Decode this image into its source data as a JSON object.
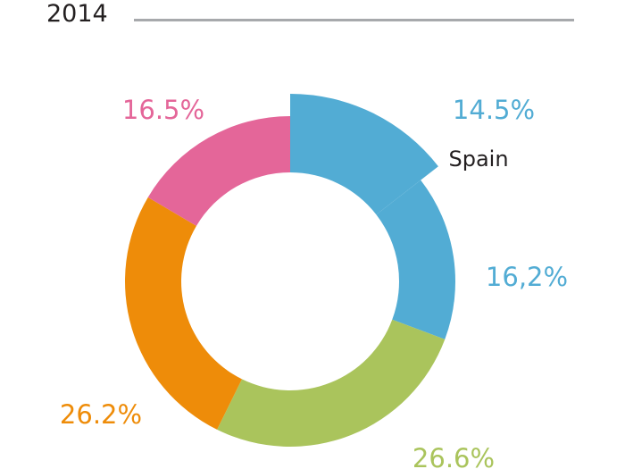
{
  "chart_data": {
    "type": "pie",
    "title": "2014",
    "slices": [
      {
        "label": "14.5%",
        "value": 14.5,
        "name": "Spain",
        "color": "#52acd4",
        "exploded": true
      },
      {
        "label": "16,2%",
        "value": 16.2,
        "name": "",
        "color": "#52acd4",
        "exploded": false
      },
      {
        "label": "26.6%",
        "value": 26.6,
        "name": "",
        "color": "#aac45c",
        "exploded": false
      },
      {
        "label": "26.2%",
        "value": 26.2,
        "name": "",
        "color": "#ee8c09",
        "exploded": false
      },
      {
        "label": "16.5%",
        "value": 16.5,
        "name": "",
        "color": "#e46699",
        "exploded": false
      }
    ],
    "donut": true,
    "colors": {
      "title": "#231f20",
      "rule": "#a7a9ac",
      "category_label": "#231f20"
    }
  }
}
